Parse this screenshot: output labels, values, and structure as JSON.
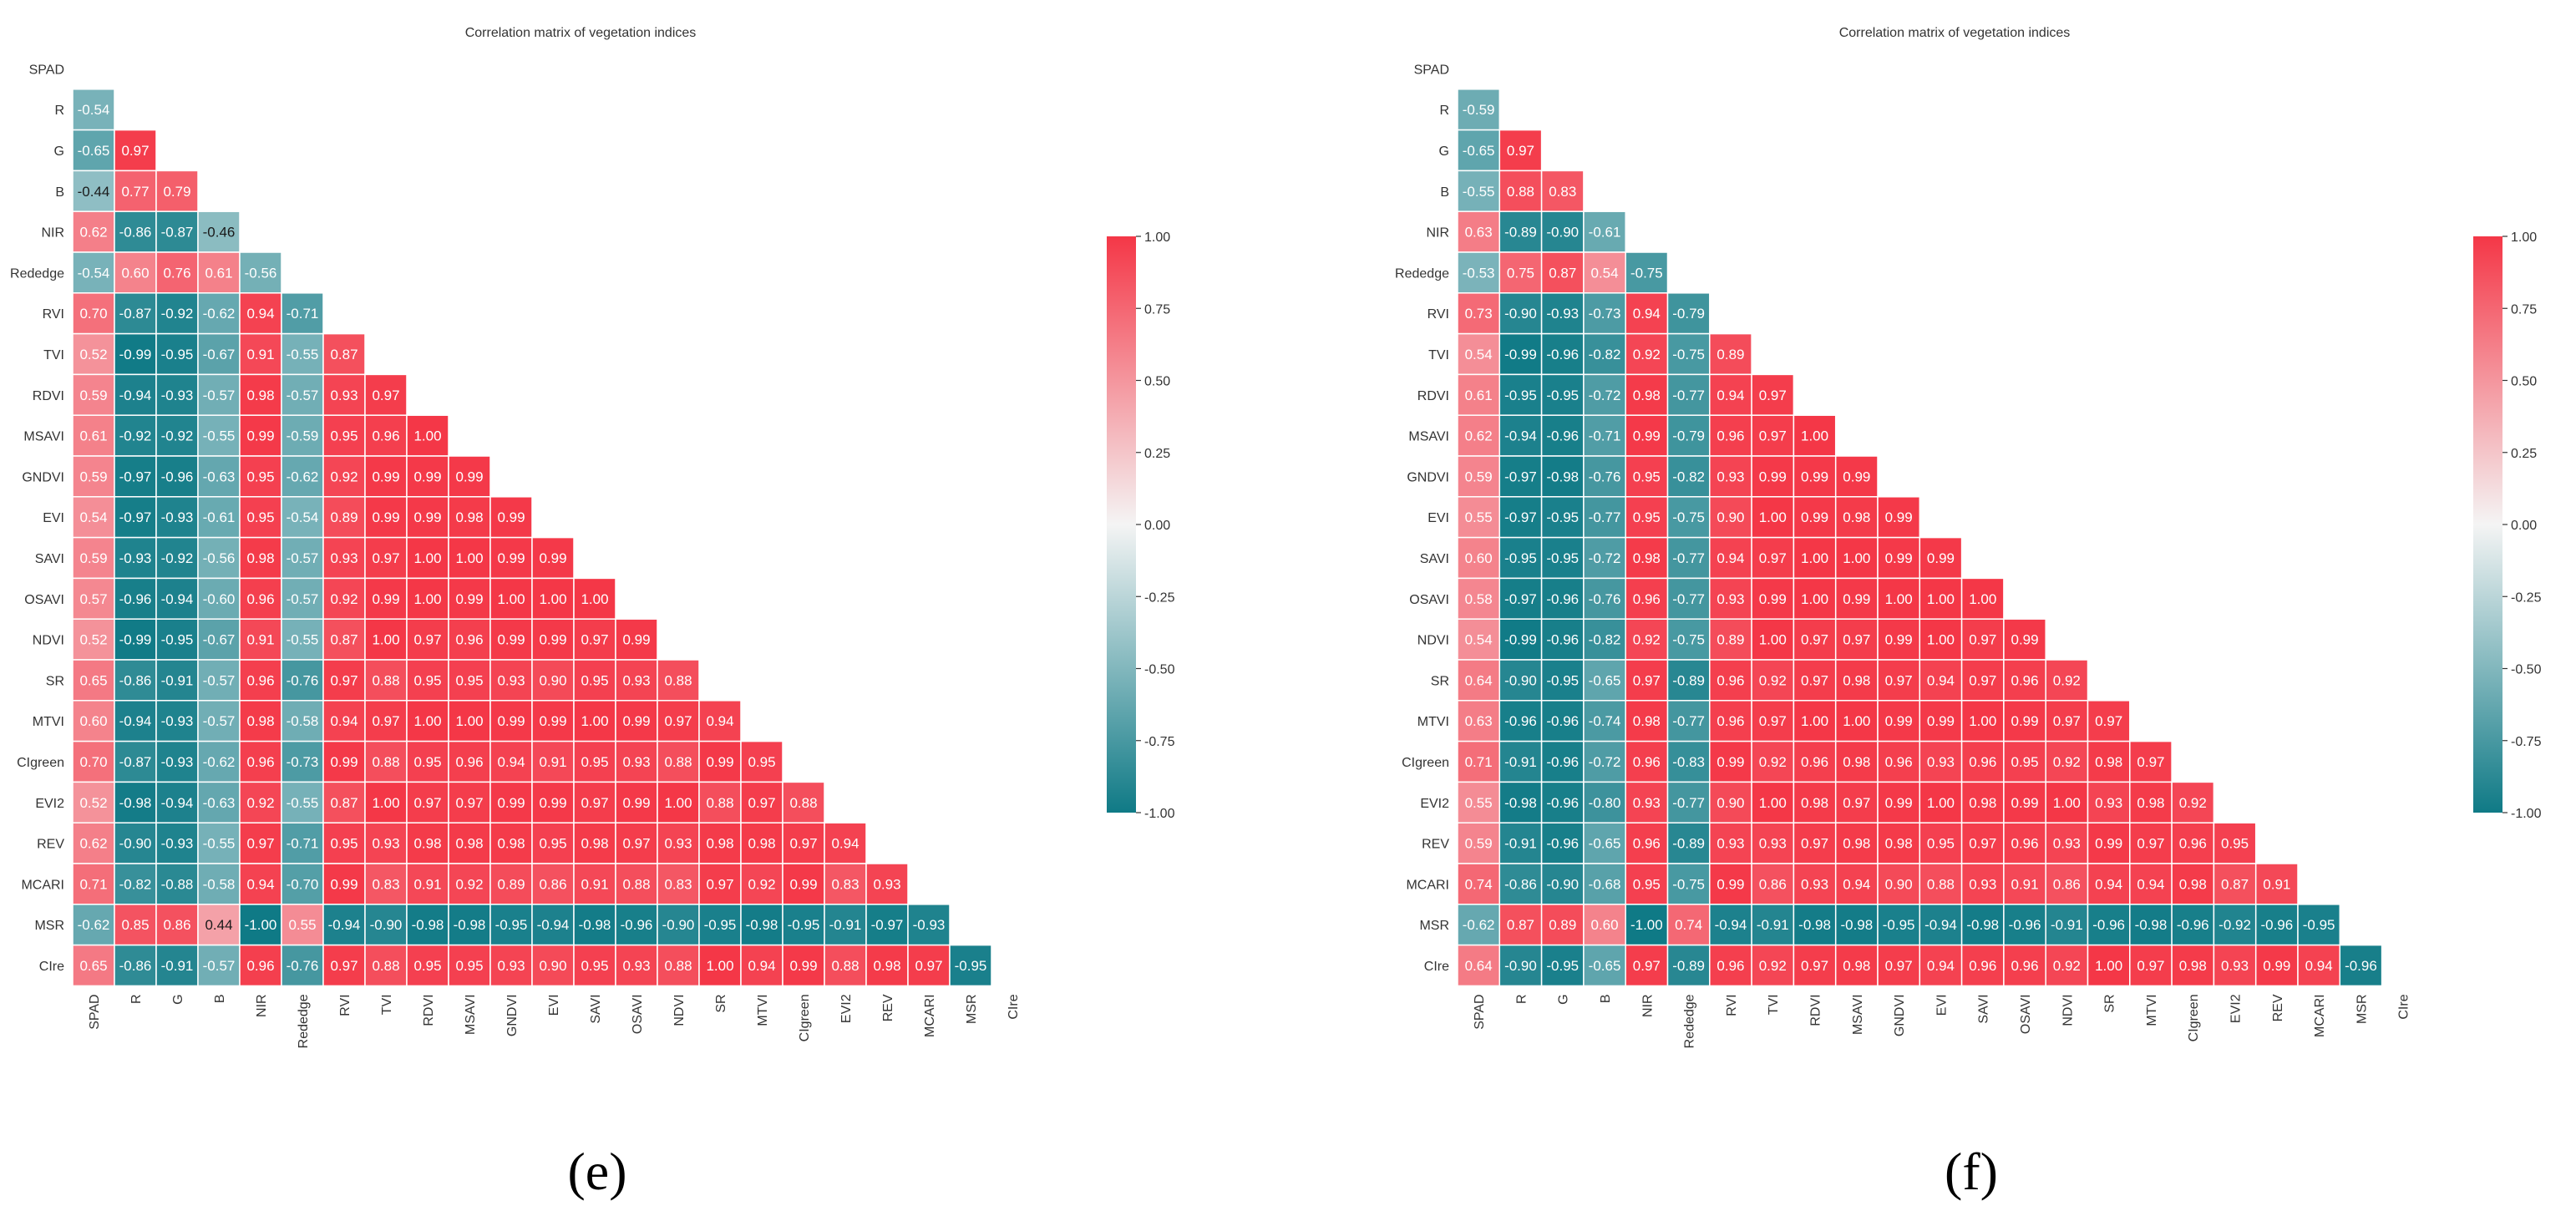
{
  "colors": {
    "neg": "#0f7a86",
    "mid": "#f4f4f4",
    "pos": "#f43747",
    "cell_text": "#ffffff"
  },
  "chart_data": [
    {
      "type": "heatmap",
      "panel_label": "(e)",
      "title": "Correlation matrix of vegetation indices",
      "variables": [
        "SPAD",
        "R",
        "G",
        "B",
        "NIR",
        "Rededge",
        "RVI",
        "TVI",
        "RDVI",
        "MSAVI",
        "GNDVI",
        "EVI",
        "SAVI",
        "OSAVI",
        "NDVI",
        "SR",
        "MTVI",
        "CIgreen",
        "EVI2",
        "REV",
        "MCARI",
        "MSR",
        "CIre"
      ],
      "mask": "upper-triangle-and-diagonal",
      "colorbar": {
        "min": -1.0,
        "max": 1.0,
        "ticks": [
          "1.00",
          "0.75",
          "0.50",
          "0.25",
          "0.00",
          "-0.25",
          "-0.50",
          "-0.75",
          "-1.00"
        ]
      },
      "rows": [
        [],
        [
          "-0.54"
        ],
        [
          "-0.65",
          "0.97"
        ],
        [
          "-0.44",
          "0.77",
          "0.79"
        ],
        [
          "0.62",
          "-0.86",
          "-0.87",
          "-0.46"
        ],
        [
          "-0.54",
          "0.60",
          "0.76",
          "0.61",
          "-0.56"
        ],
        [
          "0.70",
          "-0.87",
          "-0.92",
          "-0.62",
          "0.94",
          "-0.71"
        ],
        [
          "0.52",
          "-0.99",
          "-0.95",
          "-0.67",
          "0.91",
          "-0.55",
          "0.87"
        ],
        [
          "0.59",
          "-0.94",
          "-0.93",
          "-0.57",
          "0.98",
          "-0.57",
          "0.93",
          "0.97"
        ],
        [
          "0.61",
          "-0.92",
          "-0.92",
          "-0.55",
          "0.99",
          "-0.59",
          "0.95",
          "0.96",
          "1.00"
        ],
        [
          "0.59",
          "-0.97",
          "-0.96",
          "-0.63",
          "0.95",
          "-0.62",
          "0.92",
          "0.99",
          "0.99",
          "0.99"
        ],
        [
          "0.54",
          "-0.97",
          "-0.93",
          "-0.61",
          "0.95",
          "-0.54",
          "0.89",
          "0.99",
          "0.99",
          "0.98",
          "0.99"
        ],
        [
          "0.59",
          "-0.93",
          "-0.92",
          "-0.56",
          "0.98",
          "-0.57",
          "0.93",
          "0.97",
          "1.00",
          "1.00",
          "0.99",
          "0.99"
        ],
        [
          "0.57",
          "-0.96",
          "-0.94",
          "-0.60",
          "0.96",
          "-0.57",
          "0.92",
          "0.99",
          "1.00",
          "0.99",
          "1.00",
          "1.00",
          "1.00"
        ],
        [
          "0.52",
          "-0.99",
          "-0.95",
          "-0.67",
          "0.91",
          "-0.55",
          "0.87",
          "1.00",
          "0.97",
          "0.96",
          "0.99",
          "0.99",
          "0.97",
          "0.99"
        ],
        [
          "0.65",
          "-0.86",
          "-0.91",
          "-0.57",
          "0.96",
          "-0.76",
          "0.97",
          "0.88",
          "0.95",
          "0.95",
          "0.93",
          "0.90",
          "0.95",
          "0.93",
          "0.88"
        ],
        [
          "0.60",
          "-0.94",
          "-0.93",
          "-0.57",
          "0.98",
          "-0.58",
          "0.94",
          "0.97",
          "1.00",
          "1.00",
          "0.99",
          "0.99",
          "1.00",
          "0.99",
          "0.97",
          "0.94"
        ],
        [
          "0.70",
          "-0.87",
          "-0.93",
          "-0.62",
          "0.96",
          "-0.73",
          "0.99",
          "0.88",
          "0.95",
          "0.96",
          "0.94",
          "0.91",
          "0.95",
          "0.93",
          "0.88",
          "0.99",
          "0.95"
        ],
        [
          "0.52",
          "-0.98",
          "-0.94",
          "-0.63",
          "0.92",
          "-0.55",
          "0.87",
          "1.00",
          "0.97",
          "0.97",
          "0.99",
          "0.99",
          "0.97",
          "0.99",
          "1.00",
          "0.88",
          "0.97",
          "0.88"
        ],
        [
          "0.62",
          "-0.90",
          "-0.93",
          "-0.55",
          "0.97",
          "-0.71",
          "0.95",
          "0.93",
          "0.98",
          "0.98",
          "0.98",
          "0.95",
          "0.98",
          "0.97",
          "0.93",
          "0.98",
          "0.98",
          "0.97",
          "0.94"
        ],
        [
          "0.71",
          "-0.82",
          "-0.88",
          "-0.58",
          "0.94",
          "-0.70",
          "0.99",
          "0.83",
          "0.91",
          "0.92",
          "0.89",
          "0.86",
          "0.91",
          "0.88",
          "0.83",
          "0.97",
          "0.92",
          "0.99",
          "0.83",
          "0.93"
        ],
        [
          "-0.62",
          "0.85",
          "0.86",
          "0.44",
          "-1.00",
          "0.55",
          "-0.94",
          "-0.90",
          "-0.98",
          "-0.98",
          "-0.95",
          "-0.94",
          "-0.98",
          "-0.96",
          "-0.90",
          "-0.95",
          "-0.98",
          "-0.95",
          "-0.91",
          "-0.97",
          "-0.93"
        ],
        [
          "0.65",
          "-0.86",
          "-0.91",
          "-0.57",
          "0.96",
          "-0.76",
          "0.97",
          "0.88",
          "0.95",
          "0.95",
          "0.93",
          "0.90",
          "0.95",
          "0.93",
          "0.88",
          "1.00",
          "0.94",
          "0.99",
          "0.88",
          "0.98",
          "0.97",
          "-0.95"
        ]
      ]
    },
    {
      "type": "heatmap",
      "panel_label": "(f)",
      "title": "Correlation matrix of vegetation indices",
      "variables": [
        "SPAD",
        "R",
        "G",
        "B",
        "NIR",
        "Rededge",
        "RVI",
        "TVI",
        "RDVI",
        "MSAVI",
        "GNDVI",
        "EVI",
        "SAVI",
        "OSAVI",
        "NDVI",
        "SR",
        "MTVI",
        "CIgreen",
        "EVI2",
        "REV",
        "MCARI",
        "MSR",
        "CIre"
      ],
      "mask": "upper-triangle-and-diagonal",
      "colorbar": {
        "min": -1.0,
        "max": 1.0,
        "ticks": [
          "1.00",
          "0.75",
          "0.50",
          "0.25",
          "0.00",
          "-0.25",
          "-0.50",
          "-0.75",
          "-1.00"
        ]
      },
      "rows": [
        [],
        [
          "-0.59"
        ],
        [
          "-0.65",
          "0.97"
        ],
        [
          "-0.55",
          "0.88",
          "0.83"
        ],
        [
          "0.63",
          "-0.89",
          "-0.90",
          "-0.61"
        ],
        [
          "-0.53",
          "0.75",
          "0.87",
          "0.54",
          "-0.75"
        ],
        [
          "0.73",
          "-0.90",
          "-0.93",
          "-0.73",
          "0.94",
          "-0.79"
        ],
        [
          "0.54",
          "-0.99",
          "-0.96",
          "-0.82",
          "0.92",
          "-0.75",
          "0.89"
        ],
        [
          "0.61",
          "-0.95",
          "-0.95",
          "-0.72",
          "0.98",
          "-0.77",
          "0.94",
          "0.97"
        ],
        [
          "0.62",
          "-0.94",
          "-0.96",
          "-0.71",
          "0.99",
          "-0.79",
          "0.96",
          "0.97",
          "1.00"
        ],
        [
          "0.59",
          "-0.97",
          "-0.98",
          "-0.76",
          "0.95",
          "-0.82",
          "0.93",
          "0.99",
          "0.99",
          "0.99"
        ],
        [
          "0.55",
          "-0.97",
          "-0.95",
          "-0.77",
          "0.95",
          "-0.75",
          "0.90",
          "1.00",
          "0.99",
          "0.98",
          "0.99"
        ],
        [
          "0.60",
          "-0.95",
          "-0.95",
          "-0.72",
          "0.98",
          "-0.77",
          "0.94",
          "0.97",
          "1.00",
          "1.00",
          "0.99",
          "0.99"
        ],
        [
          "0.58",
          "-0.97",
          "-0.96",
          "-0.76",
          "0.96",
          "-0.77",
          "0.93",
          "0.99",
          "1.00",
          "0.99",
          "1.00",
          "1.00",
          "1.00"
        ],
        [
          "0.54",
          "-0.99",
          "-0.96",
          "-0.82",
          "0.92",
          "-0.75",
          "0.89",
          "1.00",
          "0.97",
          "0.97",
          "0.99",
          "1.00",
          "0.97",
          "0.99"
        ],
        [
          "0.64",
          "-0.90",
          "-0.95",
          "-0.65",
          "0.97",
          "-0.89",
          "0.96",
          "0.92",
          "0.97",
          "0.98",
          "0.97",
          "0.94",
          "0.97",
          "0.96",
          "0.92"
        ],
        [
          "0.63",
          "-0.96",
          "-0.96",
          "-0.74",
          "0.98",
          "-0.77",
          "0.96",
          "0.97",
          "1.00",
          "1.00",
          "0.99",
          "0.99",
          "1.00",
          "0.99",
          "0.97",
          "0.97"
        ],
        [
          "0.71",
          "-0.91",
          "-0.96",
          "-0.72",
          "0.96",
          "-0.83",
          "0.99",
          "0.92",
          "0.96",
          "0.98",
          "0.96",
          "0.93",
          "0.96",
          "0.95",
          "0.92",
          "0.98",
          "0.97"
        ],
        [
          "0.55",
          "-0.98",
          "-0.96",
          "-0.80",
          "0.93",
          "-0.77",
          "0.90",
          "1.00",
          "0.98",
          "0.97",
          "0.99",
          "1.00",
          "0.98",
          "0.99",
          "1.00",
          "0.93",
          "0.98",
          "0.92"
        ],
        [
          "0.59",
          "-0.91",
          "-0.96",
          "-0.65",
          "0.96",
          "-0.89",
          "0.93",
          "0.93",
          "0.97",
          "0.98",
          "0.98",
          "0.95",
          "0.97",
          "0.96",
          "0.93",
          "0.99",
          "0.97",
          "0.96",
          "0.95"
        ],
        [
          "0.74",
          "-0.86",
          "-0.90",
          "-0.68",
          "0.95",
          "-0.75",
          "0.99",
          "0.86",
          "0.93",
          "0.94",
          "0.90",
          "0.88",
          "0.93",
          "0.91",
          "0.86",
          "0.94",
          "0.94",
          "0.98",
          "0.87",
          "0.91"
        ],
        [
          "-0.62",
          "0.87",
          "0.89",
          "0.60",
          "-1.00",
          "0.74",
          "-0.94",
          "-0.91",
          "-0.98",
          "-0.98",
          "-0.95",
          "-0.94",
          "-0.98",
          "-0.96",
          "-0.91",
          "-0.96",
          "-0.98",
          "-0.96",
          "-0.92",
          "-0.96",
          "-0.95"
        ],
        [
          "0.64",
          "-0.90",
          "-0.95",
          "-0.65",
          "0.97",
          "-0.89",
          "0.96",
          "0.92",
          "0.97",
          "0.98",
          "0.97",
          "0.94",
          "0.96",
          "0.96",
          "0.92",
          "1.00",
          "0.97",
          "0.98",
          "0.93",
          "0.99",
          "0.94",
          "-0.96"
        ]
      ]
    }
  ]
}
